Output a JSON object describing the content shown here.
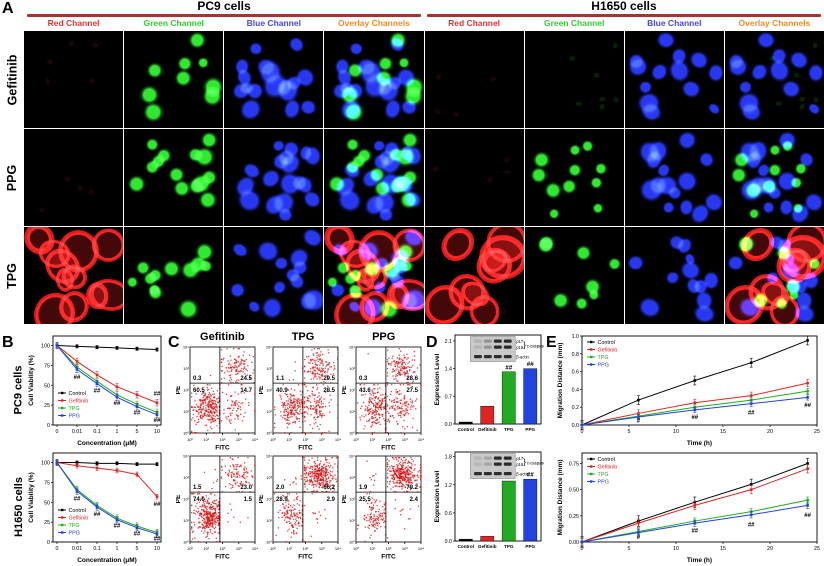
{
  "figure": {
    "panel_labels": {
      "A": "A",
      "B": "B",
      "C": "C",
      "D": "D",
      "E": "E"
    }
  },
  "row_labels": [
    "PC9 cells",
    "H1650 cells"
  ],
  "panelA": {
    "groups": [
      "PC9 cells",
      "H1650 cells"
    ],
    "channels": [
      {
        "label": "Red Channel",
        "color": "#e03434"
      },
      {
        "label": "Green Channel",
        "color": "#2ecc2e"
      },
      {
        "label": "Blue Channel",
        "color": "#4646f0"
      },
      {
        "label": "Overlay Channels",
        "color": "#f08c1e"
      }
    ],
    "treatments": [
      "Gefitinib",
      "PPG",
      "TPG"
    ],
    "cells": [
      {
        "treatment": "Gefitinib",
        "pc9": [
          [
            {
              "kind": "dim",
              "color": "#7a1818",
              "n": 5,
              "r": 3
            }
          ],
          [
            {
              "kind": "dots",
              "color": "#30e830",
              "n": 9,
              "r": 5
            }
          ],
          [
            {
              "kind": "nuclei",
              "color": "#2838f0",
              "n": 17,
              "r": 6
            }
          ],
          [
            {
              "kind": "nuclei",
              "color": "#2838f0",
              "n": 17,
              "r": 6
            },
            {
              "kind": "dots",
              "color": "#30e830",
              "n": 9,
              "r": 5
            }
          ]
        ],
        "h1650": [
          [
            {
              "kind": "dim",
              "color": "#7a1818",
              "n": 4,
              "r": 3
            }
          ],
          [
            {
              "kind": "dim",
              "color": "#1f8a1f",
              "n": 7,
              "r": 3
            }
          ],
          [
            {
              "kind": "nuclei",
              "color": "#2838f0",
              "n": 13,
              "r": 6
            }
          ],
          [
            {
              "kind": "nuclei",
              "color": "#2838f0",
              "n": 13,
              "r": 6
            },
            {
              "kind": "dim",
              "color": "#1f8a1f",
              "n": 7,
              "r": 3
            }
          ]
        ]
      },
      {
        "treatment": "PPG",
        "pc9": [
          [
            {
              "kind": "dim",
              "color": "#7a1818",
              "n": 4,
              "r": 3
            }
          ],
          [
            {
              "kind": "dots",
              "color": "#30e830",
              "n": 14,
              "r": 5
            }
          ],
          [
            {
              "kind": "nuclei",
              "color": "#2838f0",
              "n": 18,
              "r": 6
            }
          ],
          [
            {
              "kind": "nuclei",
              "color": "#2838f0",
              "n": 18,
              "r": 6
            },
            {
              "kind": "dots",
              "color": "#30e830",
              "n": 14,
              "r": 5
            }
          ]
        ],
        "h1650": [
          [
            {
              "kind": "dim",
              "color": "#7a1818",
              "n": 4,
              "r": 3
            }
          ],
          [
            {
              "kind": "dots",
              "color": "#30e830",
              "n": 11,
              "r": 4
            }
          ],
          [
            {
              "kind": "nuclei",
              "color": "#2838f0",
              "n": 15,
              "r": 6
            }
          ],
          [
            {
              "kind": "nuclei",
              "color": "#2838f0",
              "n": 15,
              "r": 6
            },
            {
              "kind": "dots",
              "color": "#30e830",
              "n": 11,
              "r": 4
            }
          ]
        ]
      },
      {
        "treatment": "TPG",
        "pc9": [
          [
            {
              "kind": "rings",
              "color": "#f02020",
              "n": 11,
              "r": 15
            }
          ],
          [
            {
              "kind": "dots",
              "color": "#30e830",
              "n": 12,
              "r": 5
            }
          ],
          [
            {
              "kind": "nuclei",
              "color": "#2838f0",
              "n": 14,
              "r": 6
            }
          ],
          [
            {
              "kind": "rings",
              "color": "#f02020",
              "n": 11,
              "r": 15
            },
            {
              "kind": "nuclei",
              "color": "#2838f0",
              "n": 14,
              "r": 6
            },
            {
              "kind": "dots",
              "color": "#30e830",
              "n": 12,
              "r": 5
            }
          ]
        ],
        "h1650": [
          [
            {
              "kind": "rings",
              "color": "#f02020",
              "n": 9,
              "r": 16
            }
          ],
          [
            {
              "kind": "dots",
              "color": "#30e830",
              "n": 8,
              "r": 4
            }
          ],
          [
            {
              "kind": "nuclei",
              "color": "#2838f0",
              "n": 12,
              "r": 6
            }
          ],
          [
            {
              "kind": "rings",
              "color": "#f02020",
              "n": 9,
              "r": 16
            },
            {
              "kind": "nuclei",
              "color": "#2838f0",
              "n": 12,
              "r": 6
            },
            {
              "kind": "dots",
              "color": "#30e830",
              "n": 8,
              "r": 4
            }
          ]
        ]
      }
    ]
  },
  "panelC": {
    "headers": [
      "Gefitinib",
      "TPG",
      "PPG"
    ]
  },
  "flow_ticks": [
    "10⁰",
    "10¹",
    "10²",
    "10³",
    "10⁴"
  ],
  "chart_data": [
    {
      "id": "viability-pc9",
      "type": "line",
      "ylabel": "Cell Viability (%)",
      "xlabel": "Concentration (μM)",
      "x": [
        "0",
        "0.01",
        "0.1",
        "1",
        "5",
        "10"
      ],
      "ylim": [
        0,
        112
      ],
      "yticks": [
        "0",
        "25",
        "50",
        "75",
        "100"
      ],
      "series": [
        {
          "name": "Control",
          "color": "#000000",
          "values": [
            100,
            99,
            98,
            97,
            96,
            95
          ],
          "err": 2
        },
        {
          "name": "Gefitinib",
          "color": "#e02424",
          "values": [
            100,
            80,
            63,
            48,
            38,
            28
          ],
          "err": 4
        },
        {
          "name": "TPG",
          "color": "#22aa22",
          "values": [
            100,
            73,
            55,
            38,
            26,
            16
          ],
          "err": 4
        },
        {
          "name": "PPG",
          "color": "#2244dd",
          "values": [
            100,
            70,
            52,
            35,
            23,
            13
          ],
          "err": 4
        }
      ],
      "legend_pos": "bl",
      "annotations": [
        {
          "x": 1,
          "y": 58,
          "t": "##"
        },
        {
          "x": 2,
          "y": 41,
          "t": "##"
        },
        {
          "x": 3,
          "y": 25,
          "t": "##"
        },
        {
          "x": 4,
          "y": 13,
          "t": "##"
        },
        {
          "x": 5,
          "y": 4,
          "t": "##"
        },
        {
          "x": 5,
          "y": 37,
          "t": "##"
        }
      ]
    },
    {
      "id": "viability-h1650",
      "type": "line",
      "ylabel": "Cell Viability (%)",
      "xlabel": "Concentration (μM)",
      "x": [
        "0",
        "0.01",
        "0.1",
        "1",
        "5",
        "10"
      ],
      "ylim": [
        0,
        112
      ],
      "yticks": [
        "0",
        "25",
        "50",
        "75",
        "100"
      ],
      "series": [
        {
          "name": "Control",
          "color": "#000000",
          "values": [
            100,
            100,
            99,
            99,
            98,
            98
          ],
          "err": 2
        },
        {
          "name": "Gefitinib",
          "color": "#e02424",
          "values": [
            100,
            96,
            93,
            90,
            85,
            57
          ],
          "err": 3
        },
        {
          "name": "TPG",
          "color": "#22aa22",
          "values": [
            100,
            66,
            46,
            30,
            20,
            12
          ],
          "err": 4
        },
        {
          "name": "PPG",
          "color": "#2244dd",
          "values": [
            100,
            64,
            44,
            28,
            18,
            10
          ],
          "err": 4
        }
      ],
      "legend_pos": "bl",
      "annotations": [
        {
          "x": 1,
          "y": 52,
          "t": "##"
        },
        {
          "x": 2,
          "y": 33,
          "t": "##"
        },
        {
          "x": 3,
          "y": 18,
          "t": "##"
        },
        {
          "x": 4,
          "y": 8,
          "t": "##"
        },
        {
          "x": 5,
          "y": 2,
          "t": "##"
        },
        {
          "x": 5,
          "y": 45,
          "t": "##"
        }
      ]
    },
    {
      "id": "flow-pc9-gef",
      "type": "flow",
      "xlabel": "FITC",
      "ylabel": "PE",
      "quadrants": {
        "ul": 0.3,
        "ur": 24.5,
        "ll": 60.5,
        "lr": 14.7
      }
    },
    {
      "id": "flow-pc9-tpg",
      "type": "flow",
      "xlabel": "FITC",
      "ylabel": "PE",
      "quadrants": {
        "ul": 1.1,
        "ur": 29.5,
        "ll": 40.9,
        "lr": 28.5
      }
    },
    {
      "id": "flow-pc9-ppg",
      "type": "flow",
      "xlabel": "FITC",
      "ylabel": "PE",
      "quadrants": {
        "ul": 0.3,
        "ur": 28.6,
        "ll": 43.6,
        "lr": 27.5
      }
    },
    {
      "id": "flow-h1650-gef",
      "type": "flow",
      "xlabel": "FITC",
      "ylabel": "PE",
      "quadrants": {
        "ul": 1.5,
        "ur": 23.0,
        "ll": 74.0,
        "lr": 1.5
      }
    },
    {
      "id": "flow-h1650-tpg",
      "type": "flow",
      "xlabel": "FITC",
      "ylabel": "PE",
      "quadrants": {
        "ul": 2.0,
        "ur": 66.2,
        "ll": 28.9,
        "lr": 2.9
      }
    },
    {
      "id": "flow-h1650-ppg",
      "type": "flow",
      "xlabel": "FITC",
      "ylabel": "PE",
      "quadrants": {
        "ul": 1.9,
        "ur": 70.2,
        "ll": 25.5,
        "lr": 2.4
      }
    },
    {
      "id": "expr-pc9",
      "type": "bar",
      "ylabel": "Expression Level",
      "categories": [
        "Control",
        "Gefitinib",
        "TPG",
        "PPG"
      ],
      "values": [
        0.05,
        0.45,
        1.32,
        1.4
      ],
      "colors": [
        "#000000",
        "#e02424",
        "#22aa22",
        "#2244dd"
      ],
      "ylim": [
        0,
        2.25
      ],
      "yticks": [
        "0.0",
        "0.7",
        "1.4",
        "2.1"
      ],
      "sig": [
        "",
        "",
        "##",
        "##"
      ],
      "blot": {
        "bg": "#c8c8c8",
        "lanes": 4,
        "rows": [
          "p17",
          "p19",
          "β-actin"
        ],
        "brace_label": "c-caspase",
        "band_alpha": [
          [
            0.12,
            0.3,
            0.92,
            0.92
          ],
          [
            0.12,
            0.3,
            0.92,
            0.92
          ],
          [
            0.9,
            0.9,
            0.9,
            0.9
          ]
        ]
      }
    },
    {
      "id": "expr-h1650",
      "type": "bar",
      "ylabel": "Expression Level",
      "categories": [
        "Control",
        "Gefitinib",
        "TPG",
        "PPG"
      ],
      "values": [
        0.04,
        0.1,
        1.28,
        1.32
      ],
      "colors": [
        "#000000",
        "#e02424",
        "#22aa22",
        "#2244dd"
      ],
      "ylim": [
        0,
        1.9
      ],
      "yticks": [
        "0.0",
        "0.6",
        "1.2",
        "1.8"
      ],
      "sig": [
        "",
        "",
        "##",
        "##"
      ],
      "blot": {
        "bg": "#c8c8c8",
        "lanes": 4,
        "rows": [
          "p17",
          "p19",
          "β-actin"
        ],
        "brace_label": "c-caspase",
        "band_alpha": [
          [
            0.1,
            0.2,
            0.92,
            0.92
          ],
          [
            0.1,
            0.2,
            0.92,
            0.92
          ],
          [
            0.9,
            0.9,
            0.9,
            0.9
          ]
        ]
      }
    },
    {
      "id": "migration-pc9",
      "type": "line",
      "x_numeric": true,
      "ylabel": "Migration Distance (mm)",
      "xlabel": "Time (h)",
      "x": [
        0,
        6,
        12,
        18,
        24
      ],
      "xlim": [
        0,
        25
      ],
      "xticks": [
        0,
        5,
        10,
        15,
        20,
        25
      ],
      "ylim": [
        0,
        1.0
      ],
      "yticks": [
        "0.0",
        "0.2",
        "0.4",
        "0.6",
        "0.8",
        "1.0"
      ],
      "series": [
        {
          "name": "Control",
          "color": "#000000",
          "values": [
            0,
            0.28,
            0.5,
            0.7,
            0.95
          ],
          "err": 0.05
        },
        {
          "name": "Gefitinib",
          "color": "#e02424",
          "values": [
            0,
            0.13,
            0.25,
            0.33,
            0.47
          ],
          "err": 0.04
        },
        {
          "name": "TPG",
          "color": "#22aa22",
          "values": [
            0,
            0.1,
            0.2,
            0.28,
            0.38
          ],
          "err": 0.03
        },
        {
          "name": "PPG",
          "color": "#2244dd",
          "values": [
            0,
            0.09,
            0.17,
            0.24,
            0.31
          ],
          "err": 0.03
        }
      ],
      "legend_pos": "tl",
      "annotations": [
        {
          "x": 6,
          "y": 0.03,
          "t": "#"
        },
        {
          "x": 12,
          "y": 0.07,
          "t": "##"
        },
        {
          "x": 18,
          "y": 0.12,
          "t": "##"
        },
        {
          "x": 24,
          "y": 0.2,
          "t": "##"
        }
      ]
    },
    {
      "id": "migration-h1650",
      "type": "line",
      "x_numeric": true,
      "ylabel": "Migration Distance (mm)",
      "xlabel": "Time (h)",
      "x": [
        0,
        6,
        12,
        18,
        24
      ],
      "xlim": [
        0,
        25
      ],
      "xticks": [
        0,
        5,
        10,
        15,
        20,
        25
      ],
      "ylim": [
        0,
        0.85
      ],
      "yticks": [
        "0.00",
        "0.25",
        "0.50",
        "0.75"
      ],
      "series": [
        {
          "name": "Control",
          "color": "#000000",
          "values": [
            0,
            0.2,
            0.38,
            0.55,
            0.75
          ],
          "err": 0.05
        },
        {
          "name": "Gefitinib",
          "color": "#e02424",
          "values": [
            0,
            0.18,
            0.35,
            0.5,
            0.7
          ],
          "err": 0.04
        },
        {
          "name": "TPG",
          "color": "#22aa22",
          "values": [
            0,
            0.1,
            0.2,
            0.29,
            0.4
          ],
          "err": 0.03
        },
        {
          "name": "PPG",
          "color": "#2244dd",
          "values": [
            0,
            0.09,
            0.18,
            0.26,
            0.35
          ],
          "err": 0.03
        }
      ],
      "legend_pos": "tl",
      "annotations": [
        {
          "x": 6,
          "y": 0.03,
          "t": "#"
        },
        {
          "x": 12,
          "y": 0.09,
          "t": "##"
        },
        {
          "x": 18,
          "y": 0.15,
          "t": "##"
        },
        {
          "x": 24,
          "y": 0.24,
          "t": "##"
        }
      ]
    }
  ]
}
